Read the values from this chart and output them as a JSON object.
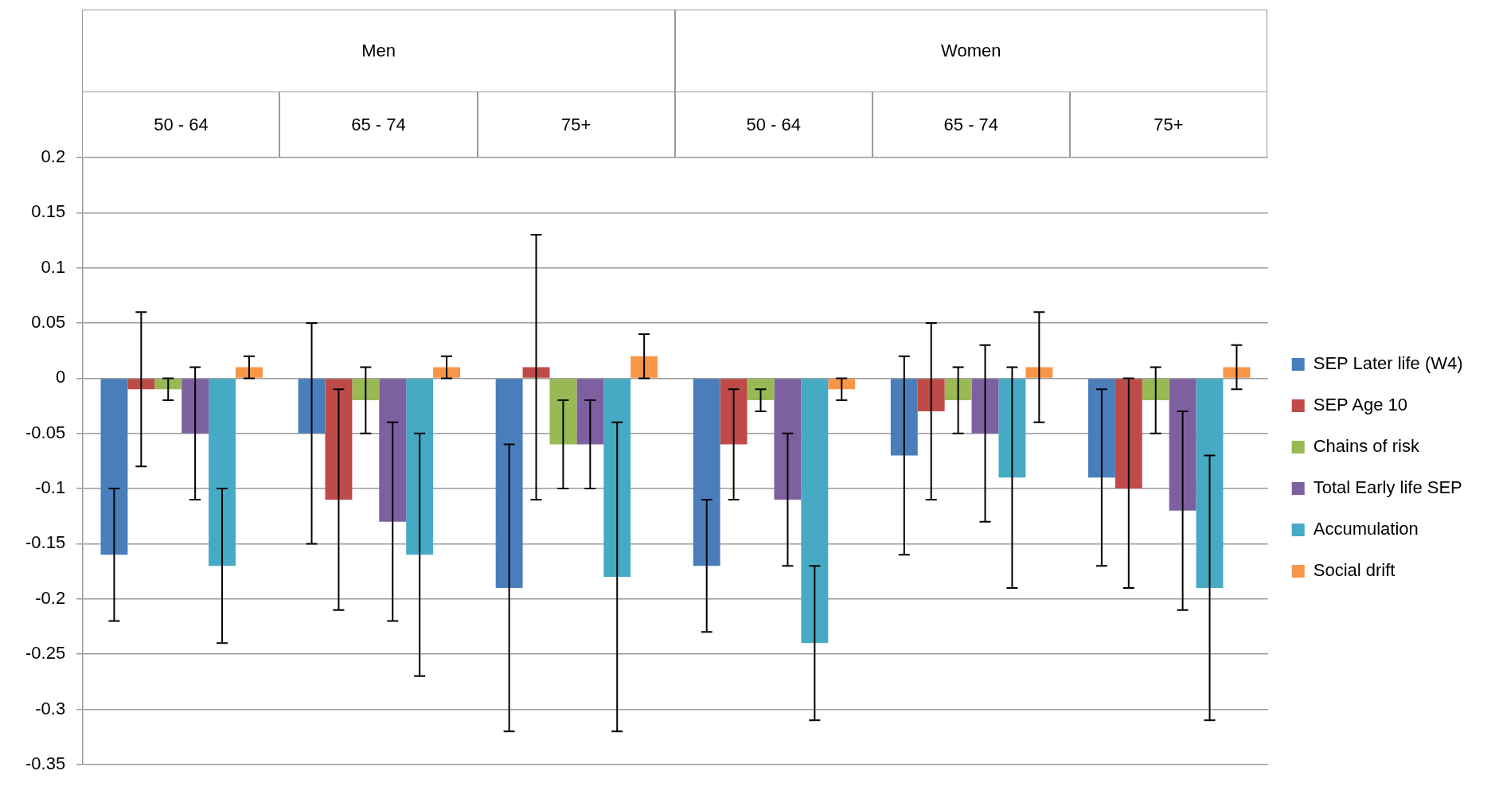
{
  "chart_data": {
    "type": "bar",
    "categories": [
      "50 - 64",
      "65 - 74",
      "75+",
      "50 - 64",
      "65 - 74",
      "75+"
    ],
    "annotations": [
      "Men",
      "Women"
    ],
    "series": [
      {
        "name": "SEP Later life (W4)",
        "color": "#4a7ebb",
        "values": [
          -0.16,
          -0.05,
          -0.19,
          -0.17,
          -0.07,
          -0.09
        ],
        "errors": [
          [
            -0.22,
            -0.1
          ],
          [
            -0.15,
            0.05
          ],
          [
            -0.32,
            -0.06
          ],
          [
            -0.23,
            -0.11
          ],
          [
            -0.16,
            0.02
          ],
          [
            -0.17,
            -0.01
          ]
        ]
      },
      {
        "name": "SEP Age 10",
        "color": "#be4b48",
        "values": [
          -0.01,
          -0.11,
          0.01,
          -0.06,
          -0.03,
          -0.1
        ],
        "errors": [
          [
            -0.08,
            0.06
          ],
          [
            -0.21,
            -0.01
          ],
          [
            -0.11,
            0.13
          ],
          [
            -0.11,
            -0.01
          ],
          [
            -0.11,
            0.05
          ],
          [
            -0.19,
            0
          ]
        ]
      },
      {
        "name": "Chains of risk",
        "color": "#98b954",
        "values": [
          -0.01,
          -0.02,
          -0.06,
          -0.02,
          -0.02,
          -0.02
        ],
        "errors": [
          [
            -0.02,
            0
          ],
          [
            -0.05,
            0.01
          ],
          [
            -0.1,
            -0.02
          ],
          [
            -0.03,
            -0.01
          ],
          [
            -0.05,
            0.01
          ],
          [
            -0.05,
            0.01
          ]
        ]
      },
      {
        "name": "Total Early life SEP",
        "color": "#7d60a0",
        "values": [
          -0.05,
          -0.13,
          -0.06,
          -0.11,
          -0.05,
          -0.12
        ],
        "errors": [
          [
            -0.11,
            0.01
          ],
          [
            -0.22,
            -0.04
          ],
          [
            -0.1,
            -0.02
          ],
          [
            -0.17,
            -0.05
          ],
          [
            -0.13,
            0.03
          ],
          [
            -0.21,
            -0.03
          ]
        ]
      },
      {
        "name": "Accumulation",
        "color": "#46aac5",
        "values": [
          -0.17,
          -0.16,
          -0.18,
          -0.24,
          -0.09,
          -0.19
        ],
        "errors": [
          [
            -0.24,
            -0.1
          ],
          [
            -0.27,
            -0.05
          ],
          [
            -0.32,
            -0.04
          ],
          [
            -0.31,
            -0.17
          ],
          [
            -0.19,
            0.01
          ],
          [
            -0.31,
            -0.07
          ]
        ]
      },
      {
        "name": "Social drift",
        "color": "#f79646",
        "values": [
          0.01,
          0.01,
          0.02,
          -0.01,
          0.01,
          0.01
        ],
        "errors": [
          [
            0,
            0.02
          ],
          [
            0,
            0.02
          ],
          [
            0,
            0.04
          ],
          [
            -0.02,
            0
          ],
          [
            -0.04,
            0.06
          ],
          [
            -0.01,
            0.03
          ]
        ]
      }
    ],
    "ylim": [
      -0.35,
      0.2
    ],
    "yticks": [
      0.2,
      0.15,
      0.1,
      0.05,
      0,
      -0.05,
      -0.1,
      -0.15,
      -0.2,
      -0.25,
      -0.3,
      -0.35
    ],
    "grid": "y",
    "legend": "right"
  }
}
